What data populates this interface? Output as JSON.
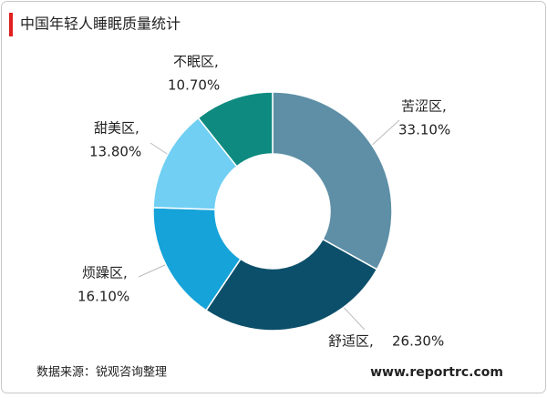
{
  "chart_data": {
    "type": "donut",
    "title": "中国年轻人睡眠质量统计",
    "categories": [
      "苦涩区,",
      "舒适区,",
      "烦躁区,",
      "甜美区,",
      "不眠区,"
    ],
    "values": [
      33.1,
      26.3,
      16.1,
      13.8,
      10.7
    ],
    "value_labels": [
      "33.10%",
      "26.30%",
      "16.10%",
      "13.80%",
      "10.70%"
    ],
    "colors": [
      "#5e8fa6",
      "#0c4f6a",
      "#15a3d9",
      "#70cff3",
      "#0e8a80"
    ],
    "source": "数据来源：锐观咨询整理",
    "watermark": "www.reportrc.com"
  }
}
